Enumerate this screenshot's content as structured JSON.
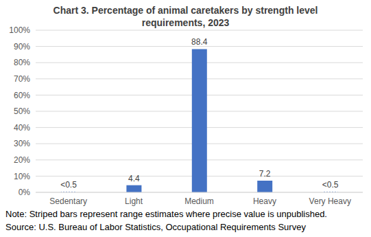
{
  "chart_data": {
    "type": "bar",
    "title": "Chart 3. Percentage of animal caretakers by strength level requirements, 2023",
    "categories": [
      "Sedentary",
      "Light",
      "Medium",
      "Heavy",
      "Very Heavy"
    ],
    "values": [
      0.5,
      4.4,
      88.4,
      7.2,
      0.5
    ],
    "value_labels": [
      "<0.5",
      "4.4",
      "88.4",
      "7.2",
      "<0.5"
    ],
    "color": "#4472c4",
    "ylim": [
      0,
      100
    ],
    "yticks": [
      {
        "value": 0,
        "label": "0%"
      },
      {
        "value": 10,
        "label": "10%"
      },
      {
        "value": 20,
        "label": "20%"
      },
      {
        "value": 30,
        "label": "30%"
      },
      {
        "value": 40,
        "label": "40%"
      },
      {
        "value": 50,
        "label": "50%"
      },
      {
        "value": 60,
        "label": "60%"
      },
      {
        "value": 70,
        "label": "70%"
      },
      {
        "value": 80,
        "label": "80%"
      },
      {
        "value": 90,
        "label": "90%"
      },
      {
        "value": 100,
        "label": "100%"
      }
    ],
    "grid": true,
    "data_labels": true,
    "annotations": [
      "Note: Striped bars represent range estimates where precise value is unpublished.",
      "Source: U.S. Bureau of Labor Statistics, Occupational Requirements Survey"
    ]
  }
}
